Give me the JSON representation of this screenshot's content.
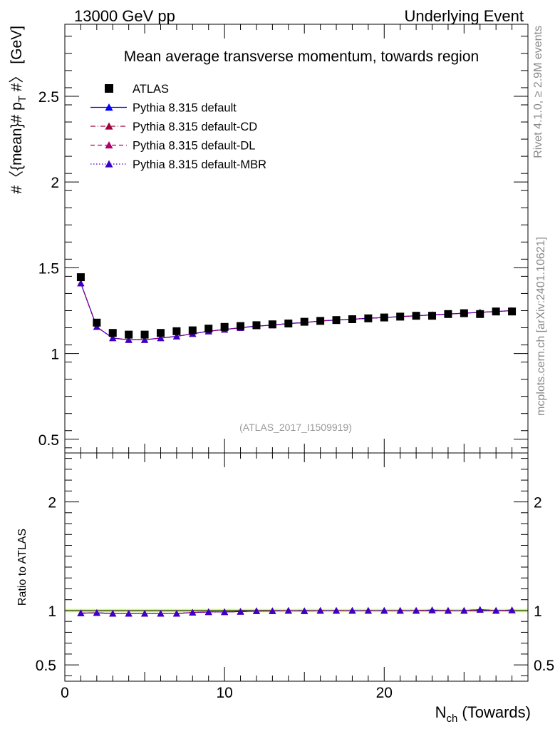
{
  "header": {
    "left": "13000 GeV pp",
    "right": "Underlying Event"
  },
  "side_labels": {
    "rivet": "Rivet 4.1.0, ≥ 2.9M events",
    "mcplots": "mcplots.cern.ch [arXiv:2401.10621]"
  },
  "colors": {
    "atlas": "#000000",
    "default": "#0000ff",
    "cd": "#a0003c",
    "dl": "#b0006e",
    "mbr": "#3c00c8",
    "band": "#ccff66"
  },
  "chart_data": [
    {
      "type": "scatter",
      "title": "Mean average transverse momentum, towards region",
      "ylabel": "#〈{mean}# p_T #〉 [GeV]",
      "ylabel_parts": {
        "pre": "#〈{mean}# p",
        "sub": "T",
        "post": " #〉 [GeV]"
      },
      "watermark": "(ATLAS_2017_I1509919)",
      "xlim": [
        0,
        29
      ],
      "ylim": [
        0.42,
        2.92
      ],
      "yticks": [
        0.5,
        1,
        1.5,
        2,
        2.5
      ],
      "ytick_labels": [
        "0.5",
        "1",
        "1.5",
        "2",
        "2.5"
      ],
      "x": [
        1,
        2,
        3,
        4,
        5,
        6,
        7,
        8,
        9,
        10,
        11,
        12,
        13,
        14,
        15,
        16,
        17,
        18,
        19,
        20,
        21,
        22,
        23,
        24,
        25,
        26,
        27,
        28
      ],
      "legend": [
        {
          "name": "ATLAS",
          "style": "data"
        },
        {
          "name": "Pythia 8.315 default",
          "style": "solid"
        },
        {
          "name": "Pythia 8.315 default-CD",
          "style": "dashdot"
        },
        {
          "name": "Pythia 8.315 default-DL",
          "style": "dashed"
        },
        {
          "name": "Pythia 8.315 default-MBR",
          "style": "dotted"
        }
      ],
      "series": [
        {
          "name": "ATLAS",
          "values": [
            1.445,
            1.18,
            1.12,
            1.11,
            1.11,
            1.12,
            1.13,
            1.135,
            1.145,
            1.155,
            1.16,
            1.165,
            1.17,
            1.175,
            1.185,
            1.19,
            1.195,
            1.2,
            1.205,
            1.21,
            1.215,
            1.22,
            1.22,
            1.23,
            1.235,
            1.23,
            1.245,
            1.245
          ]
        },
        {
          "name": "Pythia 8.315 default",
          "values": [
            1.41,
            1.155,
            1.09,
            1.08,
            1.08,
            1.09,
            1.1,
            1.115,
            1.13,
            1.14,
            1.15,
            1.16,
            1.165,
            1.175,
            1.18,
            1.19,
            1.195,
            1.2,
            1.205,
            1.21,
            1.215,
            1.22,
            1.225,
            1.23,
            1.235,
            1.24,
            1.245,
            1.25
          ]
        },
        {
          "name": "Pythia 8.315 default-CD",
          "values": [
            1.41,
            1.155,
            1.09,
            1.08,
            1.08,
            1.09,
            1.1,
            1.115,
            1.13,
            1.14,
            1.15,
            1.16,
            1.165,
            1.175,
            1.18,
            1.19,
            1.195,
            1.2,
            1.205,
            1.21,
            1.215,
            1.22,
            1.225,
            1.23,
            1.235,
            1.24,
            1.245,
            1.25
          ]
        },
        {
          "name": "Pythia 8.315 default-DL",
          "values": [
            1.41,
            1.155,
            1.09,
            1.08,
            1.08,
            1.09,
            1.1,
            1.115,
            1.13,
            1.14,
            1.15,
            1.16,
            1.165,
            1.175,
            1.18,
            1.19,
            1.195,
            1.2,
            1.205,
            1.21,
            1.215,
            1.22,
            1.225,
            1.23,
            1.235,
            1.24,
            1.245,
            1.25
          ]
        },
        {
          "name": "Pythia 8.315 default-MBR",
          "values": [
            1.41,
            1.155,
            1.09,
            1.08,
            1.08,
            1.09,
            1.1,
            1.115,
            1.13,
            1.14,
            1.15,
            1.16,
            1.165,
            1.175,
            1.18,
            1.19,
            1.195,
            1.2,
            1.205,
            1.21,
            1.215,
            1.22,
            1.225,
            1.23,
            1.235,
            1.24,
            1.245,
            1.25
          ]
        }
      ]
    },
    {
      "type": "line",
      "ylabel": "Ratio to ATLAS",
      "xlabel_parts": {
        "pre": "N",
        "sub": "ch",
        "post": " (Towards)"
      },
      "xlim": [
        0,
        29
      ],
      "xticks": [
        0,
        10,
        20
      ],
      "xtick_labels": [
        "0",
        "10",
        "20"
      ],
      "ylim": [
        0.35,
        2.45
      ],
      "yticks": [
        0.5,
        1,
        2
      ],
      "ytick_labels": [
        "0.5",
        "1",
        "2"
      ],
      "band": {
        "low": 0.985,
        "high": 1.015
      },
      "x": [
        1,
        2,
        3,
        4,
        5,
        6,
        7,
        8,
        9,
        10,
        11,
        12,
        13,
        14,
        15,
        16,
        17,
        18,
        19,
        20,
        21,
        22,
        23,
        24,
        25,
        26,
        27,
        28
      ],
      "series": [
        {
          "name": "Pythia 8.315 default",
          "values": [
            0.976,
            0.979,
            0.973,
            0.973,
            0.973,
            0.973,
            0.973,
            0.982,
            0.987,
            0.987,
            0.991,
            0.996,
            0.996,
            1.0,
            0.996,
            1.0,
            1.0,
            1.0,
            1.0,
            1.0,
            1.0,
            1.0,
            1.004,
            1.0,
            1.0,
            1.008,
            1.0,
            1.004
          ]
        },
        {
          "name": "Pythia 8.315 default-CD",
          "values": [
            0.976,
            0.979,
            0.973,
            0.973,
            0.973,
            0.973,
            0.973,
            0.982,
            0.987,
            0.987,
            0.991,
            0.996,
            0.996,
            1.0,
            0.996,
            1.0,
            1.0,
            1.0,
            1.0,
            1.0,
            1.0,
            1.0,
            1.004,
            1.0,
            1.0,
            1.008,
            1.0,
            1.004
          ]
        },
        {
          "name": "Pythia 8.315 default-DL",
          "values": [
            0.976,
            0.979,
            0.973,
            0.973,
            0.973,
            0.973,
            0.973,
            0.982,
            0.987,
            0.987,
            0.991,
            0.996,
            0.996,
            1.0,
            0.996,
            1.0,
            1.0,
            1.0,
            1.0,
            1.0,
            1.0,
            1.0,
            1.004,
            1.0,
            1.0,
            1.008,
            1.0,
            1.004
          ]
        },
        {
          "name": "Pythia 8.315 default-MBR",
          "values": [
            0.976,
            0.979,
            0.973,
            0.973,
            0.973,
            0.973,
            0.973,
            0.982,
            0.987,
            0.987,
            0.991,
            0.996,
            0.996,
            1.0,
            0.996,
            1.0,
            1.0,
            1.0,
            1.0,
            1.0,
            1.0,
            1.0,
            1.004,
            1.0,
            1.0,
            1.008,
            1.0,
            1.004
          ]
        }
      ]
    }
  ]
}
